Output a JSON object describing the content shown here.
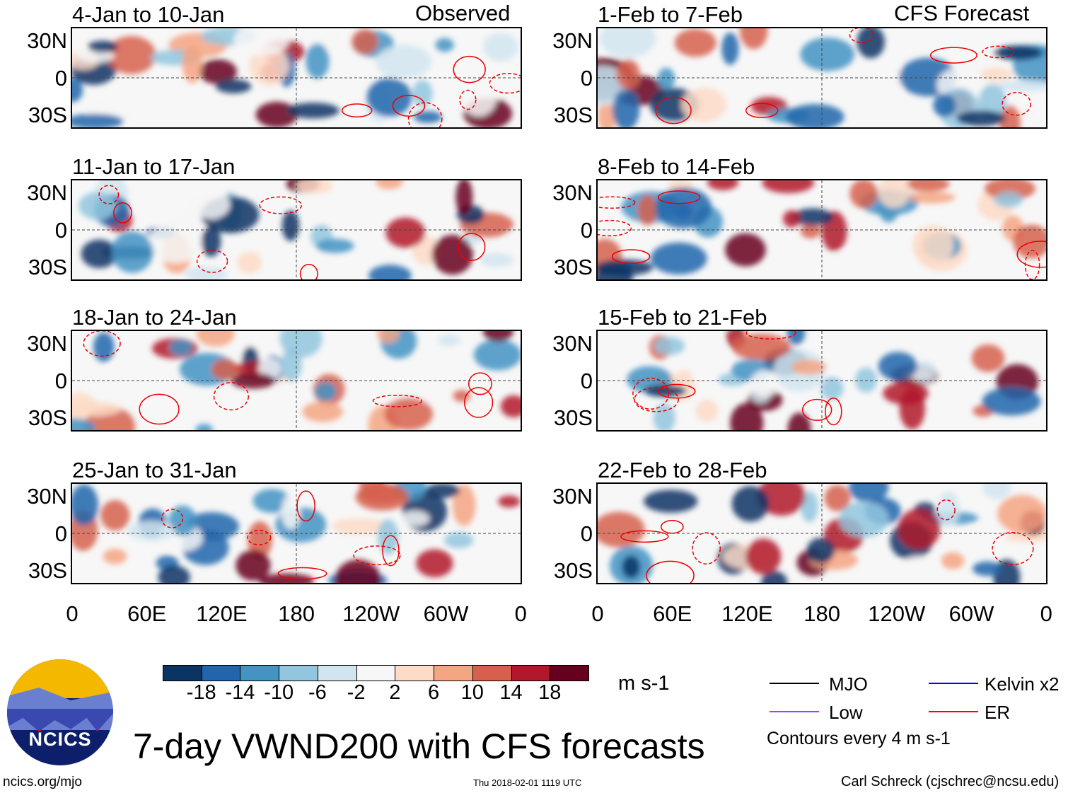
{
  "title": "7-day VWND200 with CFS forecasts",
  "left_header": "Observed",
  "right_header": "CFS Forecast",
  "units": "m s-1",
  "footer": {
    "site": "ncics.org/mjo",
    "timestamp": "Thu 2018-02-01 1119 UTC",
    "author": "Carl Schreck (cjschrec@ncsu.edu)"
  },
  "logo_text": "NCICS",
  "legend": {
    "items": [
      {
        "label": "MJO",
        "color": "#000000"
      },
      {
        "label": "Kelvin x2",
        "color": "#0000ff"
      },
      {
        "label": "Low",
        "color": "#a040ff"
      },
      {
        "label": "ER",
        "color": "#ff0000"
      }
    ],
    "note": "Contours every 4 m s-1"
  },
  "chart_data": {
    "type": "heatmap",
    "variable": "VWND200",
    "lat_ticks": [
      "30N",
      "0",
      "30S"
    ],
    "lon_ticks": [
      "0",
      "60E",
      "120E",
      "180",
      "120W",
      "60W",
      "0"
    ],
    "colorbar": {
      "labels": [
        "-18",
        "-14",
        "-10",
        "-6",
        "-2",
        "2",
        "6",
        "10",
        "14",
        "18"
      ],
      "colors": [
        "#0a3464",
        "#2166ac",
        "#4393c3",
        "#92c5de",
        "#d1e5f0",
        "#f7f7f7",
        "#fddbc7",
        "#f4a582",
        "#d6604d",
        "#b2182b",
        "#67001f"
      ]
    },
    "panels": [
      {
        "title": "4-Jan to 10-Jan",
        "type": "observed"
      },
      {
        "title": "11-Jan to 17-Jan",
        "type": "observed"
      },
      {
        "title": "18-Jan to 24-Jan",
        "type": "observed"
      },
      {
        "title": "25-Jan to 31-Jan",
        "type": "observed"
      },
      {
        "title": "1-Feb to 7-Feb",
        "type": "forecast"
      },
      {
        "title": "8-Feb to 14-Feb",
        "type": "forecast"
      },
      {
        "title": "15-Feb to 21-Feb",
        "type": "forecast"
      },
      {
        "title": "22-Feb to 28-Feb",
        "type": "forecast"
      }
    ]
  }
}
